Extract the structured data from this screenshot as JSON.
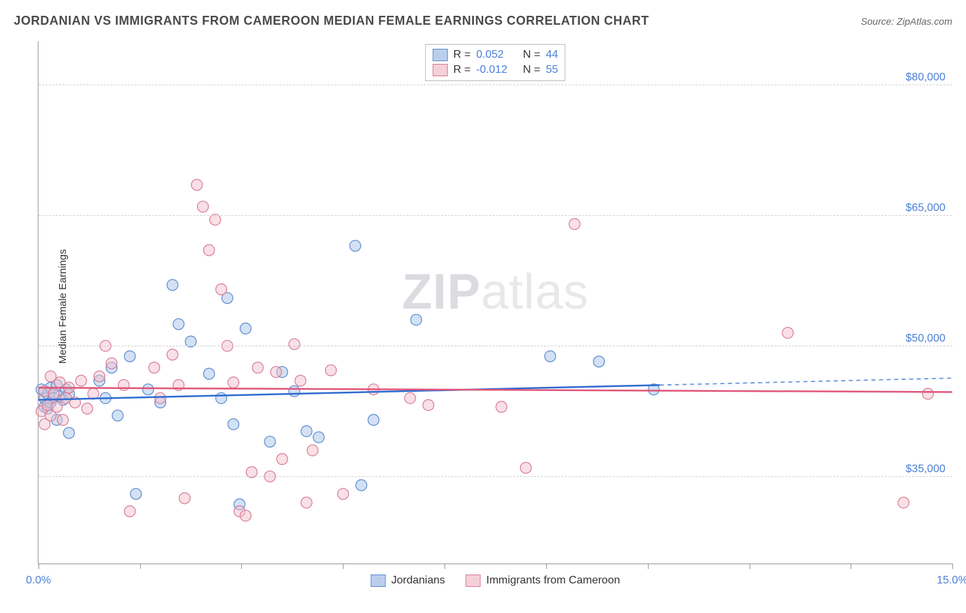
{
  "title": "JORDANIAN VS IMMIGRANTS FROM CAMEROON MEDIAN FEMALE EARNINGS CORRELATION CHART",
  "source": "Source: ZipAtlas.com",
  "y_axis_label": "Median Female Earnings",
  "watermark_bold": "ZIP",
  "watermark_light": "atlas",
  "chart": {
    "type": "scatter",
    "background_color": "#ffffff",
    "grid_color": "#d0d0d0",
    "axis_color": "#999999",
    "tick_label_color": "#4a7fd8",
    "xlim": [
      0,
      15
    ],
    "ylim": [
      25000,
      85000
    ],
    "x_ticks": [
      0,
      1.67,
      3.33,
      5,
      6.67,
      8.33,
      10,
      11.67,
      13.33,
      15
    ],
    "x_tick_labels": {
      "0": "0.0%",
      "15": "15.0%"
    },
    "y_gridlines": [
      35000,
      50000,
      65000,
      80000
    ],
    "y_tick_labels": [
      "$35,000",
      "$50,000",
      "$65,000",
      "$80,000"
    ],
    "marker_radius": 8,
    "marker_opacity": 0.5,
    "marker_stroke_width": 1.2,
    "series": [
      {
        "name": "Jordanians",
        "fill_color": "#a8c4e8",
        "stroke_color": "#5a8ad0",
        "line_color": "#2e6bd0",
        "r_value": "0.052",
        "n_value": "44",
        "trend": {
          "x1": 0,
          "y1": 43800,
          "x2": 10.2,
          "y2": 45500,
          "x2_ext": 15,
          "y2_ext": 46300
        },
        "points": [
          [
            0.05,
            45000
          ],
          [
            0.1,
            44000
          ],
          [
            0.1,
            43000
          ],
          [
            0.15,
            44500
          ],
          [
            0.15,
            42800
          ],
          [
            0.2,
            45200
          ],
          [
            0.2,
            43500
          ],
          [
            0.25,
            44000
          ],
          [
            0.3,
            45500
          ],
          [
            0.3,
            41500
          ],
          [
            0.35,
            44200
          ],
          [
            0.4,
            43800
          ],
          [
            0.45,
            45000
          ],
          [
            0.5,
            44500
          ],
          [
            0.5,
            40000
          ],
          [
            1.0,
            46000
          ],
          [
            1.1,
            44000
          ],
          [
            1.2,
            47500
          ],
          [
            1.3,
            42000
          ],
          [
            1.5,
            48800
          ],
          [
            1.6,
            33000
          ],
          [
            1.8,
            45000
          ],
          [
            2.0,
            43500
          ],
          [
            2.2,
            57000
          ],
          [
            2.3,
            52500
          ],
          [
            2.5,
            50500
          ],
          [
            2.8,
            46800
          ],
          [
            3.0,
            44000
          ],
          [
            3.1,
            55500
          ],
          [
            3.2,
            41000
          ],
          [
            3.3,
            31800
          ],
          [
            3.4,
            52000
          ],
          [
            3.8,
            39000
          ],
          [
            4.0,
            47000
          ],
          [
            4.2,
            44800
          ],
          [
            4.4,
            40200
          ],
          [
            4.6,
            39500
          ],
          [
            5.2,
            61500
          ],
          [
            5.3,
            34000
          ],
          [
            5.5,
            41500
          ],
          [
            6.2,
            53000
          ],
          [
            8.4,
            48800
          ],
          [
            9.2,
            48200
          ],
          [
            10.1,
            45000
          ]
        ]
      },
      {
        "name": "Immigrants from Cameroon",
        "fill_color": "#f2c2ce",
        "stroke_color": "#d87a95",
        "line_color": "#e0567a",
        "r_value": "-0.012",
        "n_value": "55",
        "trend": {
          "x1": 0,
          "y1": 45200,
          "x2": 15,
          "y2": 44700
        },
        "points": [
          [
            0.05,
            42500
          ],
          [
            0.1,
            41000
          ],
          [
            0.1,
            44800
          ],
          [
            0.15,
            43200
          ],
          [
            0.2,
            46500
          ],
          [
            0.2,
            42000
          ],
          [
            0.25,
            44500
          ],
          [
            0.3,
            43000
          ],
          [
            0.35,
            45800
          ],
          [
            0.4,
            41500
          ],
          [
            0.45,
            44000
          ],
          [
            0.5,
            45200
          ],
          [
            0.6,
            43500
          ],
          [
            0.7,
            46000
          ],
          [
            0.8,
            42800
          ],
          [
            0.9,
            44500
          ],
          [
            1.0,
            46500
          ],
          [
            1.1,
            50000
          ],
          [
            1.2,
            48000
          ],
          [
            1.4,
            45500
          ],
          [
            1.5,
            31000
          ],
          [
            1.9,
            47500
          ],
          [
            2.0,
            44000
          ],
          [
            2.2,
            49000
          ],
          [
            2.3,
            45500
          ],
          [
            2.4,
            32500
          ],
          [
            2.6,
            68500
          ],
          [
            2.7,
            66000
          ],
          [
            2.8,
            61000
          ],
          [
            2.9,
            64500
          ],
          [
            3.0,
            56500
          ],
          [
            3.1,
            50000
          ],
          [
            3.2,
            45800
          ],
          [
            3.3,
            31000
          ],
          [
            3.4,
            30500
          ],
          [
            3.5,
            35500
          ],
          [
            3.6,
            47500
          ],
          [
            3.8,
            35000
          ],
          [
            3.9,
            47000
          ],
          [
            4.0,
            37000
          ],
          [
            4.2,
            50200
          ],
          [
            4.3,
            46000
          ],
          [
            4.4,
            32000
          ],
          [
            4.5,
            38000
          ],
          [
            4.8,
            47200
          ],
          [
            5.0,
            33000
          ],
          [
            5.5,
            45000
          ],
          [
            6.1,
            44000
          ],
          [
            6.4,
            43200
          ],
          [
            7.6,
            43000
          ],
          [
            8.0,
            36000
          ],
          [
            8.8,
            64000
          ],
          [
            12.3,
            51500
          ],
          [
            14.2,
            32000
          ],
          [
            14.6,
            44500
          ]
        ]
      }
    ]
  },
  "legend_top": {
    "r_label": "R =",
    "n_label": "N ="
  },
  "legend_bottom": {
    "series1": "Jordanians",
    "series2": "Immigrants from Cameroon"
  }
}
